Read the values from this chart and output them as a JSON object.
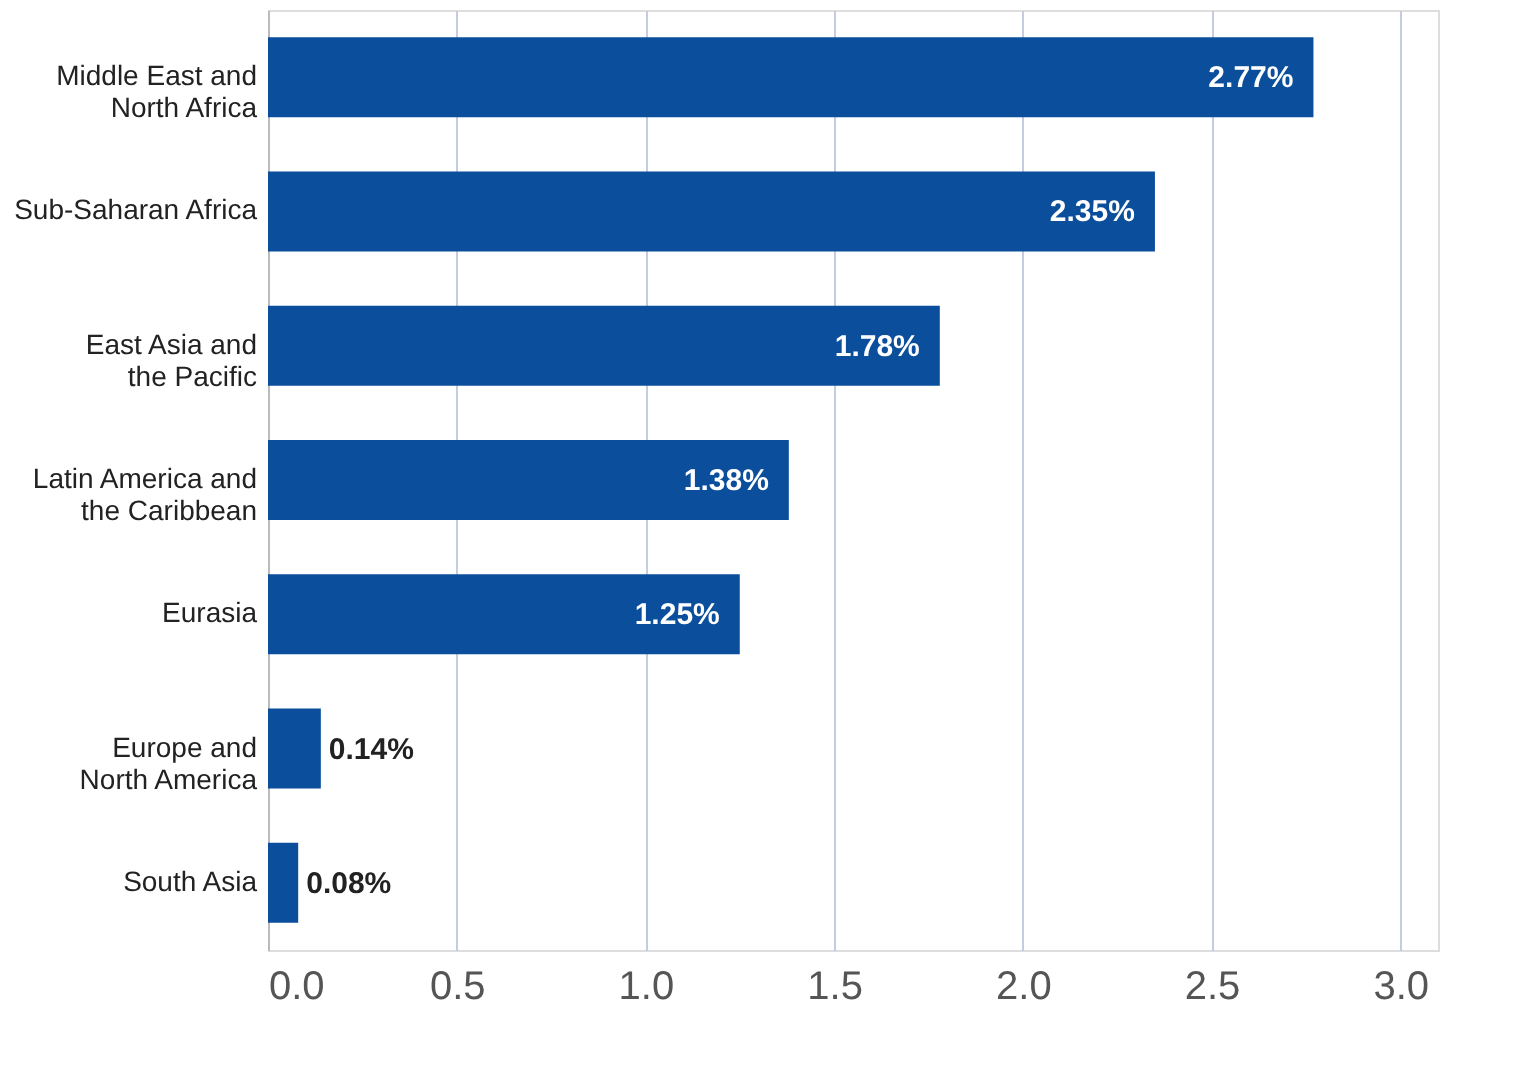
{
  "chart_data": {
    "type": "bar",
    "orientation": "horizontal",
    "categories": [
      "Middle East and\nNorth Africa",
      "Sub-Saharan Africa",
      "East Asia and\nthe Pacific",
      "Latin America and\nthe Caribbean",
      "Eurasia",
      "Europe and\nNorth America",
      "South Asia"
    ],
    "values": [
      2.77,
      2.35,
      1.78,
      1.38,
      1.25,
      0.14,
      0.08
    ],
    "value_labels": [
      "2.77%",
      "2.35%",
      "1.78%",
      "1.38%",
      "1.25%",
      "0.14%",
      "0.08%"
    ],
    "color": "#0b4f9c",
    "xlim": [
      0,
      3.1
    ],
    "xticks": [
      {
        "value": 0,
        "label": "0.0"
      },
      0.5,
      {
        "value": 1,
        "label": "1.0"
      },
      1.5,
      {
        "value": 2,
        "label": "2.0"
      },
      2.5,
      {
        "value": 3,
        "label": "3.0"
      }
    ],
    "grid": "x"
  }
}
